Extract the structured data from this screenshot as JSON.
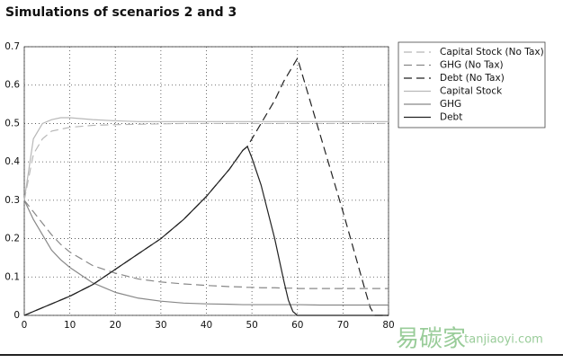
{
  "chart_data": {
    "type": "line",
    "title": "Simulations of scenarios 2 and 3",
    "x": [
      0,
      2,
      4,
      6,
      8,
      10,
      15,
      20,
      25,
      30,
      35,
      40,
      45,
      48,
      49,
      50,
      52,
      55,
      57,
      58,
      59,
      60,
      65,
      70,
      75,
      76,
      77,
      80
    ],
    "series": [
      {
        "name": "Capital Stock (No Tax)",
        "color": "#b8b8b8",
        "dash": true,
        "values": [
          0.3,
          0.42,
          0.46,
          0.48,
          0.485,
          0.49,
          0.495,
          0.497,
          0.498,
          0.499,
          0.5,
          0.5,
          0.5,
          0.5,
          0.5,
          0.5,
          0.5,
          0.5,
          0.5,
          0.5,
          0.5,
          0.5,
          0.5,
          0.5,
          0.5,
          0.5,
          0.5,
          0.5
        ]
      },
      {
        "name": "GHG (No Tax)",
        "color": "#888888",
        "dash": true,
        "values": [
          0.3,
          0.27,
          0.24,
          0.21,
          0.185,
          0.165,
          0.13,
          0.11,
          0.095,
          0.087,
          0.082,
          0.078,
          0.075,
          0.074,
          0.073,
          0.073,
          0.072,
          0.072,
          0.071,
          0.071,
          0.071,
          0.07,
          0.07,
          0.07,
          0.07,
          0.07,
          0.07,
          0.07
        ]
      },
      {
        "name": "Debt (No Tax)",
        "color": "#222222",
        "dash": true,
        "values": [
          0,
          0.01,
          0.02,
          0.03,
          0.04,
          0.05,
          0.08,
          0.12,
          0.16,
          0.2,
          0.25,
          0.31,
          0.38,
          0.43,
          0.44,
          0.46,
          0.5,
          0.56,
          0.61,
          0.63,
          0.65,
          0.67,
          0.47,
          0.27,
          0.06,
          0.02,
          0,
          0
        ]
      },
      {
        "name": "Capital Stock",
        "color": "#b8b8b8",
        "dash": false,
        "values": [
          0.3,
          0.46,
          0.5,
          0.51,
          0.515,
          0.515,
          0.51,
          0.507,
          0.505,
          0.505,
          0.505,
          0.505,
          0.505,
          0.505,
          0.505,
          0.505,
          0.505,
          0.505,
          0.505,
          0.505,
          0.505,
          0.505,
          0.505,
          0.505,
          0.505,
          0.505,
          0.505,
          0.505
        ]
      },
      {
        "name": "GHG",
        "color": "#888888",
        "dash": false,
        "values": [
          0.3,
          0.25,
          0.21,
          0.17,
          0.145,
          0.125,
          0.085,
          0.06,
          0.045,
          0.037,
          0.032,
          0.03,
          0.029,
          0.028,
          0.028,
          0.028,
          0.028,
          0.028,
          0.028,
          0.028,
          0.028,
          0.028,
          0.027,
          0.027,
          0.027,
          0.027,
          0.027,
          0.027
        ]
      },
      {
        "name": "Debt",
        "color": "#222222",
        "dash": false,
        "values": [
          0,
          0.01,
          0.02,
          0.03,
          0.04,
          0.05,
          0.08,
          0.12,
          0.16,
          0.2,
          0.25,
          0.31,
          0.38,
          0.43,
          0.44,
          0.41,
          0.34,
          0.2,
          0.09,
          0.04,
          0.01,
          0,
          0,
          0,
          0,
          0,
          0,
          0
        ]
      }
    ],
    "xlim": [
      0,
      80
    ],
    "ylim": [
      0,
      0.7
    ],
    "xticks": [
      0,
      10,
      20,
      30,
      40,
      50,
      60,
      70,
      80
    ],
    "yticks": [
      0,
      0.1,
      0.2,
      0.3,
      0.4,
      0.5,
      0.6,
      0.7
    ],
    "grid": true,
    "legend": "top-right",
    "watermark": [
      "易碳家",
      "tanjiaoyi.com"
    ]
  }
}
